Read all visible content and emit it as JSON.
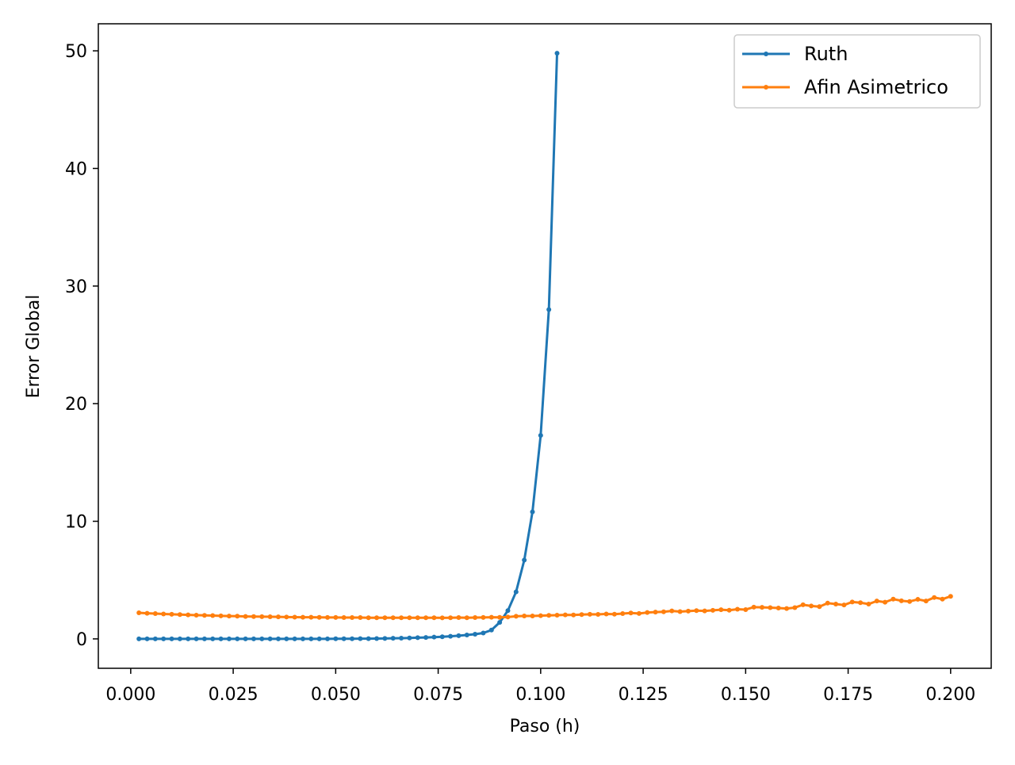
{
  "chart_data": {
    "type": "line",
    "title": "",
    "xlabel": "Paso (h)",
    "ylabel": "Error Global",
    "xlim": [
      -0.0079,
      0.2099
    ],
    "ylim": [
      -2.5,
      52.3
    ],
    "xticks": [
      "0.000",
      "0.025",
      "0.050",
      "0.075",
      "0.100",
      "0.125",
      "0.150",
      "0.175",
      "0.200"
    ],
    "xtick_values": [
      0,
      0.025,
      0.05,
      0.075,
      0.1,
      0.125,
      0.15,
      0.175,
      0.2
    ],
    "yticks": [
      "0",
      "10",
      "20",
      "30",
      "40",
      "50"
    ],
    "ytick_values": [
      0,
      10,
      20,
      30,
      40,
      50
    ],
    "grid": false,
    "legend_position": "top-right",
    "series": [
      {
        "name": "Ruth",
        "color": "#1f77b4",
        "x": [
          0.002,
          0.004,
          0.006,
          0.008,
          0.01,
          0.012,
          0.014,
          0.016,
          0.018,
          0.02,
          0.022,
          0.024,
          0.026,
          0.028,
          0.03,
          0.032,
          0.034,
          0.036,
          0.038,
          0.04,
          0.042,
          0.044,
          0.046,
          0.048,
          0.05,
          0.052,
          0.054,
          0.056,
          0.058,
          0.06,
          0.062,
          0.064,
          0.066,
          0.068,
          0.07,
          0.072,
          0.074,
          0.076,
          0.078,
          0.08,
          0.082,
          0.084,
          0.086,
          0.088,
          0.09,
          0.092,
          0.094,
          0.096,
          0.098,
          0.1,
          0.102,
          0.104
        ],
        "values": [
          0,
          0,
          0,
          0,
          0,
          0,
          0,
          0,
          0,
          0,
          0,
          0,
          0,
          0,
          0,
          0,
          0,
          0,
          0,
          0,
          0,
          0,
          0,
          0,
          0.01,
          0.01,
          0.01,
          0.02,
          0.02,
          0.03,
          0.04,
          0.05,
          0.06,
          0.08,
          0.1,
          0.12,
          0.15,
          0.18,
          0.22,
          0.27,
          0.33,
          0.4,
          0.5,
          0.75,
          1.4,
          2.4,
          4.0,
          6.7,
          10.8,
          17.3,
          28.0,
          49.8
        ]
      },
      {
        "name": "Afin Asimetrico",
        "color": "#ff7f0e",
        "x": [
          0.002,
          0.004,
          0.006,
          0.008,
          0.01,
          0.012,
          0.014,
          0.016,
          0.018,
          0.02,
          0.022,
          0.024,
          0.026,
          0.028,
          0.03,
          0.032,
          0.034,
          0.036,
          0.038,
          0.04,
          0.042,
          0.044,
          0.046,
          0.048,
          0.05,
          0.052,
          0.054,
          0.056,
          0.058,
          0.06,
          0.062,
          0.064,
          0.066,
          0.068,
          0.07,
          0.072,
          0.074,
          0.076,
          0.078,
          0.08,
          0.082,
          0.084,
          0.086,
          0.088,
          0.09,
          0.092,
          0.094,
          0.096,
          0.098,
          0.1,
          0.102,
          0.104,
          0.106,
          0.108,
          0.11,
          0.112,
          0.114,
          0.116,
          0.118,
          0.12,
          0.122,
          0.124,
          0.126,
          0.128,
          0.13,
          0.132,
          0.134,
          0.136,
          0.138,
          0.14,
          0.142,
          0.144,
          0.146,
          0.148,
          0.15,
          0.152,
          0.154,
          0.156,
          0.158,
          0.16,
          0.162,
          0.164,
          0.166,
          0.168,
          0.17,
          0.172,
          0.174,
          0.176,
          0.178,
          0.18,
          0.182,
          0.184,
          0.186,
          0.188,
          0.19,
          0.192,
          0.194,
          0.196,
          0.198,
          0.2
        ],
        "values": [
          2.22,
          2.18,
          2.15,
          2.12,
          2.09,
          2.07,
          2.04,
          2.02,
          2.0,
          1.98,
          1.96,
          1.94,
          1.93,
          1.91,
          1.9,
          1.89,
          1.88,
          1.87,
          1.86,
          1.85,
          1.84,
          1.84,
          1.83,
          1.82,
          1.82,
          1.81,
          1.81,
          1.81,
          1.8,
          1.8,
          1.8,
          1.8,
          1.8,
          1.8,
          1.8,
          1.8,
          1.8,
          1.79,
          1.8,
          1.81,
          1.8,
          1.81,
          1.82,
          1.84,
          1.83,
          1.86,
          1.92,
          1.95,
          1.95,
          1.97,
          2.0,
          2.02,
          2.04,
          2.03,
          2.07,
          2.09,
          2.08,
          2.12,
          2.1,
          2.15,
          2.2,
          2.16,
          2.24,
          2.28,
          2.3,
          2.38,
          2.32,
          2.36,
          2.4,
          2.38,
          2.43,
          2.48,
          2.44,
          2.52,
          2.49,
          2.7,
          2.68,
          2.66,
          2.62,
          2.58,
          2.66,
          2.9,
          2.8,
          2.74,
          3.04,
          2.96,
          2.88,
          3.14,
          3.08,
          2.96,
          3.22,
          3.12,
          3.38,
          3.24,
          3.18,
          3.36,
          3.22,
          3.52,
          3.38,
          3.62
        ]
      }
    ]
  }
}
